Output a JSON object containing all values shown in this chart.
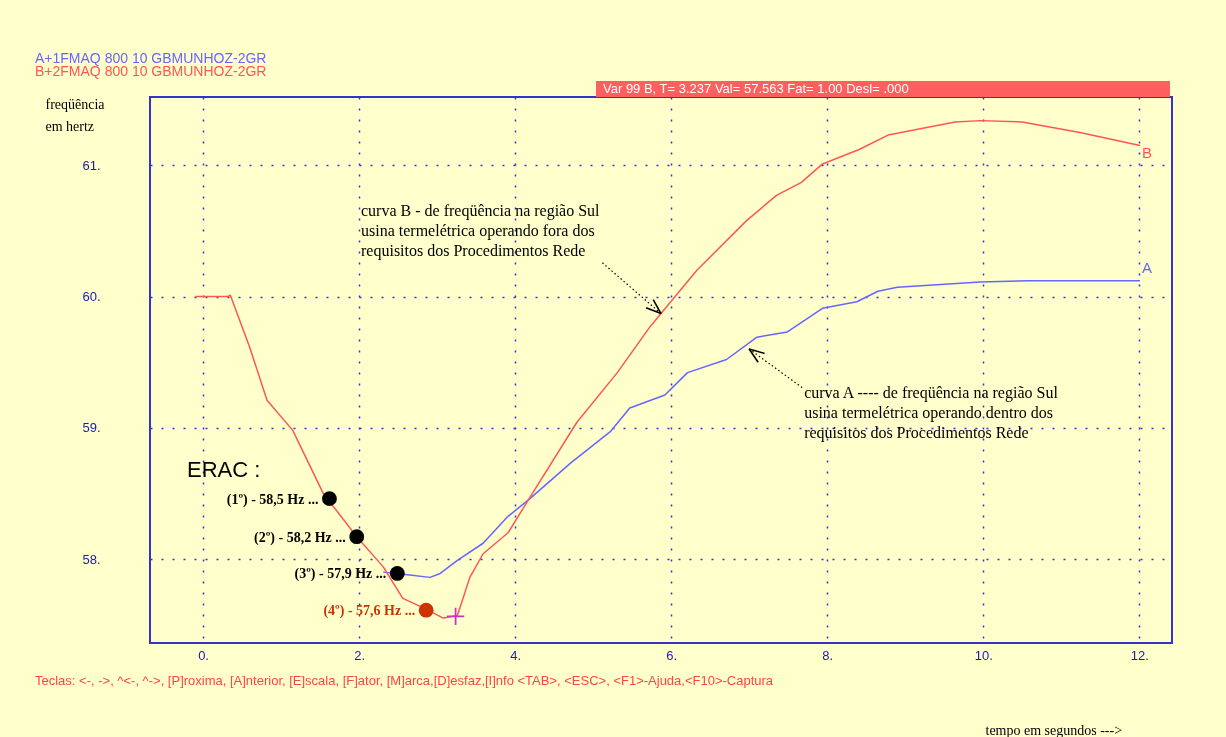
{
  "chart_data": {
    "type": "line",
    "xlabel": "tempo em segundos --->",
    "ylabel": "freqüência em hertz",
    "xlim": [
      -0.68,
      12.42
    ],
    "ylim": [
      57.36,
      61.52
    ],
    "xticks": [
      {
        "value": 0,
        "label": "0."
      },
      {
        "value": 2,
        "label": "2."
      },
      {
        "value": 4,
        "label": "4."
      },
      {
        "value": 6,
        "label": "6."
      },
      {
        "value": 8,
        "label": "8."
      },
      {
        "value": 10,
        "label": "10."
      },
      {
        "value": 12,
        "label": "12."
      }
    ],
    "yticks": [
      {
        "value": 58,
        "label": "58."
      },
      {
        "value": 59,
        "label": "59."
      },
      {
        "value": 60,
        "label": "60."
      },
      {
        "value": 61,
        "label": "61."
      }
    ],
    "grid": true,
    "legend": "top left",
    "series": [
      {
        "name": "A+1FMAQ   800 10 GBMUNHOZ-2GR",
        "color": "#6666ff",
        "x": [
          2.31,
          2.62,
          2.91,
          3.04,
          3.26,
          3.59,
          3.9,
          4.19,
          4.71,
          5.22,
          5.47,
          5.92,
          6.21,
          6.71,
          7.1,
          7.49,
          7.94,
          8.38,
          8.65,
          8.9,
          9.96,
          10.6,
          12.01
        ],
        "values": [
          57.9,
          57.88,
          57.86,
          57.89,
          57.99,
          58.12,
          58.32,
          58.46,
          58.73,
          58.97,
          59.15,
          59.25,
          59.42,
          59.52,
          59.69,
          59.73,
          59.91,
          59.96,
          60.04,
          60.07,
          60.11,
          60.12,
          60.12
        ]
      },
      {
        "name": "B+2FMAQ   800 10 GBMUNHOZ-2GR",
        "color": "#ff5555",
        "x": [
          -0.1,
          0.32,
          0.35,
          0.6,
          0.82,
          1.15,
          1.54,
          1.97,
          2.31,
          2.56,
          2.82,
          3.08,
          3.26,
          3.42,
          3.59,
          3.91,
          4.19,
          4.79,
          5.31,
          5.73,
          5.87,
          6.33,
          6.97,
          7.35,
          7.67,
          7.94,
          8.41,
          8.78,
          9.64,
          9.96,
          10.5,
          11.24,
          12.01
        ],
        "values": [
          60.0,
          60.0,
          60.01,
          59.61,
          59.21,
          58.98,
          58.5,
          58.17,
          57.94,
          57.7,
          57.63,
          57.55,
          57.57,
          57.86,
          58.04,
          58.2,
          58.47,
          59.04,
          59.42,
          59.77,
          59.87,
          60.2,
          60.58,
          60.77,
          60.87,
          61.01,
          61.12,
          61.23,
          61.33,
          61.34,
          61.33,
          61.25,
          61.15
        ]
      },
      {
        "type": "scatter",
        "marker": "circle",
        "x": [
          1.62,
          1.97,
          2.49,
          2.86
        ],
        "values": [
          58.46,
          58.17,
          57.89,
          57.61
        ],
        "colors": [
          "#000000",
          "#000000",
          "#000000",
          "#cc3300"
        ]
      },
      {
        "type": "scatter",
        "marker": "cross",
        "color": "#cc33cc",
        "x": [
          3.237
        ],
        "values": [
          57.563
        ]
      }
    ],
    "annotations": [
      "Var  99 B, T=   3.237  Val= 57.563     Fat= 1.00     Desl= .000",
      "ERAC :",
      {
        "text": "(1º) - 58,5 Hz ...",
        "x": 1.62,
        "y": 58.46
      },
      {
        "text": "(2º) - 58,2 Hz ...",
        "x": 1.97,
        "y": 58.17
      },
      {
        "text": "(3º) - 57,9 Hz ...",
        "x": 2.49,
        "y": 57.89
      },
      {
        "text": "(4º) - 57,6 Hz ...",
        "x": 2.86,
        "y": 57.61
      },
      {
        "text": "curva B - de freqüência na região Sul usina termelétrica  operando fora dos requisitos dos Procedimentos Rede",
        "x": 5.87,
        "y": 59.87
      },
      {
        "text": "curva A ---- de freqüência na região Sul usina termelétrica operando dentro dos requisitos dos Procedimentos Rede",
        "x": 7.0,
        "y": 59.6
      },
      {
        "text": "B",
        "x": 12.01,
        "y": 61.15
      },
      {
        "text": "A",
        "x": 12.01,
        "y": 60.12
      },
      "Teclas: <-, ->, ^<-, ^->, [P]roxima, [A]nterior, [E]scala, [F]ator, [M]arca,[D]esfaz,[I]nfo <TAB>, <ESC>, <F1>-Ajuda,<F10>-Captura"
    ]
  }
}
